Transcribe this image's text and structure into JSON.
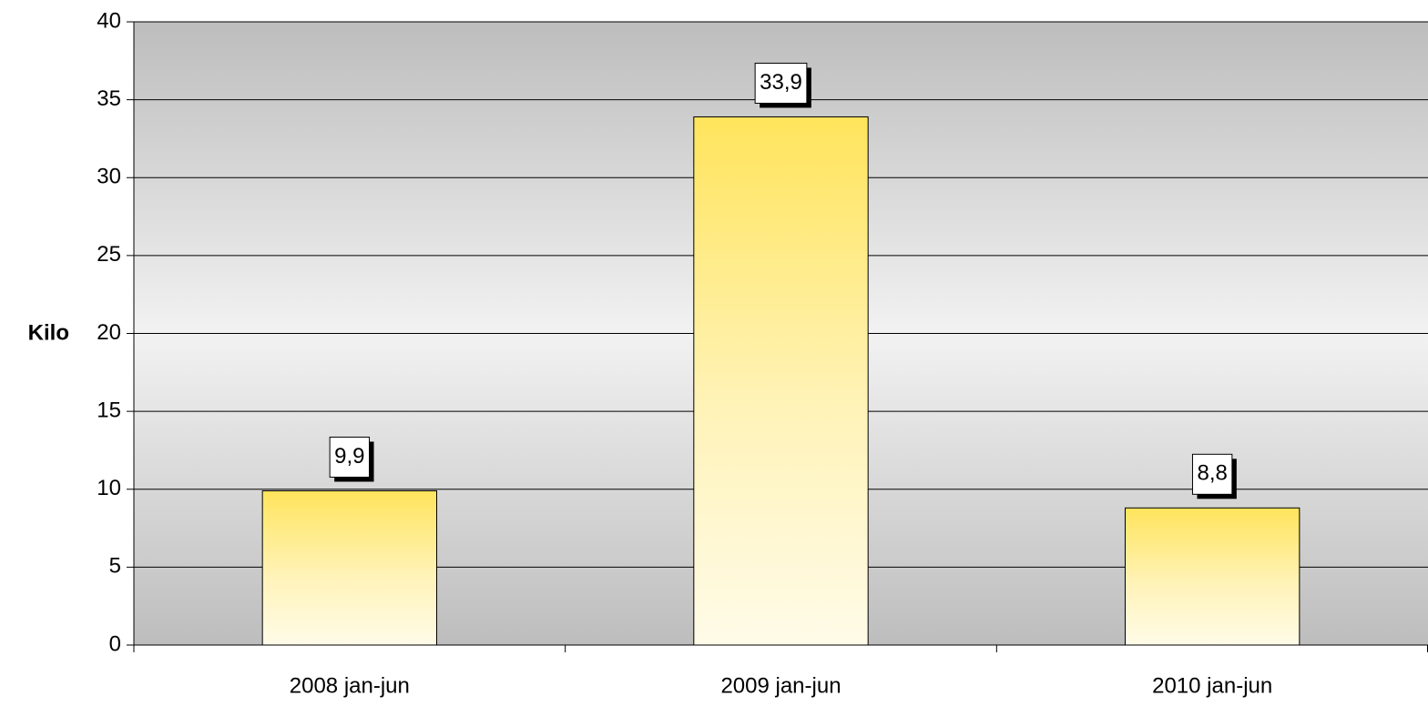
{
  "chart_data": {
    "type": "bar",
    "y_label": "Kilo",
    "categories": [
      "2008 jan-jun",
      "2009 jan-jun",
      "2010 jan-jun"
    ],
    "values": [
      9.9,
      33.9,
      8.8
    ],
    "value_labels": [
      "9,9",
      "33,9",
      "8,8"
    ],
    "color": "#ffe45c",
    "ylim": [
      0,
      40
    ],
    "yticks": [
      0,
      5,
      10,
      15,
      20,
      25,
      30,
      35,
      40
    ],
    "grid": true
  }
}
